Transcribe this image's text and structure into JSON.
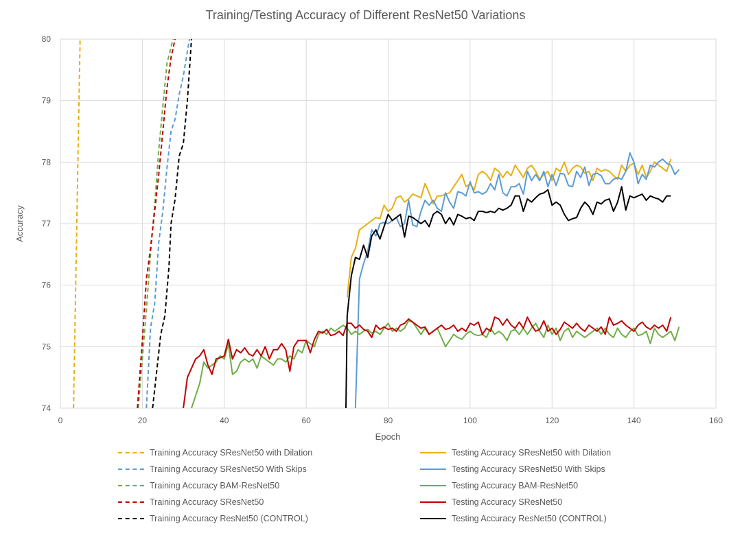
{
  "chart_data": {
    "type": "line",
    "title": "Training/Testing Accuracy of Different ResNet50 Variations",
    "xlabel": "Epoch",
    "ylabel": "Accuracy",
    "xlim": [
      0,
      160
    ],
    "ylim": [
      74,
      80
    ],
    "xticks": [
      0,
      20,
      40,
      60,
      80,
      100,
      120,
      140,
      160
    ],
    "yticks": [
      74,
      75,
      76,
      77,
      78,
      79,
      80
    ],
    "grid": true,
    "legend_position": "bottom",
    "series": [
      {
        "name": "Training Accuracy SResNet50 with Dilation",
        "style": "dashed",
        "color": "#E6B012",
        "x": [
          3.2,
          4.8
        ],
        "y": [
          74.0,
          80.0
        ]
      },
      {
        "name": "Testing Accuracy SResNet50 with Dilation",
        "style": "solid",
        "color": "#E6B012",
        "x": [
          70,
          71,
          72,
          73,
          74,
          75,
          76,
          77,
          78,
          79,
          80,
          81,
          82,
          83,
          84,
          85,
          86,
          87,
          88,
          89,
          90,
          91,
          92,
          93,
          94,
          95,
          96,
          97,
          98,
          99,
          100,
          101,
          102,
          103,
          104,
          105,
          106,
          107,
          108,
          109,
          110,
          111,
          112,
          113,
          114,
          115,
          116,
          117,
          118,
          119,
          120,
          121,
          122,
          123,
          124,
          125,
          126,
          127,
          128,
          129,
          130,
          131,
          132,
          133,
          134,
          135,
          136,
          137,
          138,
          139,
          140,
          141,
          142,
          143,
          144,
          145,
          146,
          147,
          148,
          149
        ],
        "y": [
          75.8,
          76.45,
          76.6,
          76.9,
          76.95,
          77.0,
          77.05,
          77.1,
          77.08,
          77.3,
          77.2,
          77.25,
          77.42,
          77.45,
          77.35,
          77.4,
          77.48,
          77.45,
          77.42,
          77.65,
          77.5,
          77.32,
          77.45,
          77.45,
          77.48,
          77.5,
          77.6,
          77.7,
          77.8,
          77.6,
          77.65,
          77.55,
          77.8,
          77.85,
          77.8,
          77.7,
          77.9,
          77.85,
          77.75,
          77.85,
          77.78,
          77.95,
          77.85,
          77.75,
          77.9,
          77.95,
          77.85,
          77.72,
          77.8,
          77.85,
          77.7,
          77.9,
          77.85,
          78.0,
          77.8,
          77.9,
          77.95,
          77.92,
          77.82,
          77.85,
          77.7,
          77.9,
          77.85,
          77.88,
          77.85,
          77.78,
          77.72,
          77.95,
          77.85,
          77.95,
          77.98,
          77.8,
          77.95,
          77.75,
          77.85,
          78.0,
          77.95,
          77.9,
          77.85,
          78.05
        ]
      },
      {
        "name": "Training Accuracy SResNet50 With Skips",
        "style": "dashed",
        "color": "#5B9BD5",
        "x": [
          21.0,
          22.0,
          23.0,
          24.0,
          25.0,
          26.0,
          27.0,
          28.0,
          29.0,
          30.0,
          31.5
        ],
        "y": [
          74.0,
          75.3,
          75.7,
          76.7,
          77.2,
          77.9,
          78.5,
          78.7,
          79.1,
          79.4,
          80.0
        ]
      },
      {
        "name": "Testing Accuracy SResNet50 With Skips",
        "style": "solid",
        "color": "#5B9BD5",
        "x": [
          72,
          73,
          74,
          75,
          76,
          77,
          78,
          79,
          80,
          81,
          82,
          83,
          84,
          85,
          86,
          87,
          88,
          89,
          90,
          91,
          92,
          93,
          94,
          95,
          96,
          97,
          98,
          99,
          100,
          101,
          102,
          103,
          104,
          105,
          106,
          107,
          108,
          109,
          110,
          111,
          112,
          113,
          114,
          115,
          116,
          117,
          118,
          119,
          120,
          121,
          122,
          123,
          124,
          125,
          126,
          127,
          128,
          129,
          130,
          131,
          132,
          133,
          134,
          135,
          136,
          137,
          138,
          139,
          140,
          141,
          142,
          143,
          144,
          145,
          146,
          147,
          148,
          149,
          150,
          151
        ],
        "y": [
          74.0,
          76.1,
          76.35,
          76.55,
          76.9,
          76.8,
          77.0,
          77.02,
          77.0,
          77.05,
          77.1,
          76.95,
          77.0,
          77.38,
          76.98,
          76.95,
          77.2,
          77.38,
          77.3,
          77.38,
          77.25,
          77.2,
          77.5,
          77.35,
          77.25,
          77.52,
          77.5,
          77.45,
          77.68,
          77.5,
          77.52,
          77.48,
          77.52,
          77.65,
          77.55,
          77.8,
          77.5,
          77.45,
          77.6,
          77.6,
          77.65,
          77.48,
          77.85,
          77.7,
          77.8,
          77.7,
          77.85,
          77.6,
          77.8,
          77.62,
          77.82,
          77.8,
          77.62,
          77.6,
          77.85,
          77.75,
          77.92,
          77.62,
          77.8,
          77.82,
          77.78,
          77.65,
          77.65,
          77.72,
          77.75,
          77.72,
          77.85,
          78.15,
          78.0,
          77.65,
          77.8,
          77.72,
          77.95,
          77.92,
          78.0,
          78.05,
          77.98,
          77.95,
          77.8,
          77.88
        ]
      },
      {
        "name": "Training Accuracy BAM-ResNet50",
        "style": "dashed",
        "color": "#70AD47",
        "x": [
          19.0,
          20.0,
          21.0,
          22.0,
          23.0,
          24.0,
          25.0,
          26.0,
          27.5
        ],
        "y": [
          74.0,
          74.8,
          75.6,
          76.5,
          77.3,
          78.2,
          78.9,
          79.6,
          80.0
        ]
      },
      {
        "name": "Testing Accuracy BAM-ResNet50",
        "style": "solid",
        "color": "#70AD47",
        "x": [
          32,
          33,
          34,
          35,
          36,
          37,
          38,
          39,
          40,
          41,
          42,
          43,
          44,
          45,
          46,
          47,
          48,
          49,
          50,
          51,
          52,
          53,
          54,
          55,
          56,
          57,
          58,
          59,
          60,
          61,
          62,
          63,
          64,
          65,
          66,
          67,
          68,
          69,
          70,
          71,
          72,
          73,
          74,
          75,
          76,
          77,
          78,
          79,
          80,
          81,
          82,
          83,
          84,
          85,
          86,
          87,
          88,
          89,
          90,
          91,
          92,
          93,
          94,
          95,
          96,
          97,
          98,
          99,
          100,
          101,
          102,
          103,
          104,
          105,
          106,
          107,
          108,
          109,
          110,
          111,
          112,
          113,
          114,
          115,
          116,
          117,
          118,
          119,
          120,
          121,
          122,
          123,
          124,
          125,
          126,
          127,
          128,
          129,
          130,
          131,
          132,
          133,
          134,
          135,
          136,
          137,
          138,
          139,
          140,
          141,
          142,
          143,
          144,
          145,
          146,
          147,
          148,
          149,
          150,
          151
        ],
        "y": [
          74.0,
          74.2,
          74.4,
          74.75,
          74.65,
          74.7,
          74.75,
          74.85,
          74.8,
          75.05,
          74.55,
          74.6,
          74.75,
          74.8,
          74.75,
          74.8,
          74.65,
          74.85,
          74.8,
          74.75,
          74.7,
          74.8,
          74.8,
          74.75,
          74.85,
          74.8,
          74.95,
          74.9,
          75.1,
          75.05,
          75.0,
          75.2,
          75.25,
          75.2,
          75.3,
          75.25,
          75.3,
          75.35,
          75.3,
          75.2,
          75.25,
          75.2,
          75.25,
          75.28,
          75.22,
          75.25,
          75.2,
          75.3,
          75.38,
          75.25,
          75.3,
          75.25,
          75.3,
          75.42,
          75.4,
          75.3,
          75.2,
          75.3,
          75.2,
          75.25,
          75.3,
          75.15,
          75.0,
          75.1,
          75.2,
          75.15,
          75.12,
          75.2,
          75.25,
          75.2,
          75.18,
          75.2,
          75.15,
          75.3,
          75.2,
          75.25,
          75.2,
          75.1,
          75.25,
          75.28,
          75.2,
          75.3,
          75.2,
          75.3,
          75.38,
          75.25,
          75.15,
          75.35,
          75.2,
          75.3,
          75.1,
          75.25,
          75.3,
          75.15,
          75.25,
          75.2,
          75.15,
          75.2,
          75.25,
          75.3,
          75.2,
          75.3,
          75.2,
          75.15,
          75.3,
          75.2,
          75.15,
          75.25,
          75.3,
          75.18,
          75.2,
          75.25,
          75.05,
          75.3,
          75.2,
          75.15,
          75.2,
          75.25,
          75.1,
          75.32
        ]
      },
      {
        "name": "Training Accuracy SResNet50",
        "style": "dashed",
        "color": "#C00000",
        "x": [
          18.8,
          20.0,
          21.0,
          22.0,
          23.0,
          24.0,
          25.0,
          26.0,
          27.0,
          28.0
        ],
        "y": [
          74.0,
          75.1,
          76.1,
          76.6,
          77.2,
          77.8,
          78.5,
          79.2,
          79.7,
          80.0
        ]
      },
      {
        "name": "Testing Accuracy SResNet50",
        "style": "solid",
        "color": "#C00000",
        "x": [
          30,
          31,
          32,
          33,
          34,
          35,
          36,
          37,
          38,
          39,
          40,
          41,
          42,
          43,
          44,
          45,
          46,
          47,
          48,
          49,
          50,
          51,
          52,
          53,
          54,
          55,
          56,
          57,
          58,
          59,
          60,
          61,
          62,
          63,
          64,
          65,
          66,
          67,
          68,
          69,
          70,
          71,
          72,
          73,
          74,
          75,
          76,
          77,
          78,
          79,
          80,
          81,
          82,
          83,
          84,
          85,
          86,
          87,
          88,
          89,
          90,
          91,
          92,
          93,
          94,
          95,
          96,
          97,
          98,
          99,
          100,
          101,
          102,
          103,
          104,
          105,
          106,
          107,
          108,
          109,
          110,
          111,
          112,
          113,
          114,
          115,
          116,
          117,
          118,
          119,
          120,
          121,
          122,
          123,
          124,
          125,
          126,
          127,
          128,
          129,
          130,
          131,
          132,
          133,
          134,
          135,
          136,
          137,
          138,
          139,
          140,
          141,
          142,
          143,
          144,
          145,
          146,
          147,
          148,
          149
        ],
        "y": [
          74.0,
          74.5,
          74.65,
          74.8,
          74.85,
          74.95,
          74.7,
          74.55,
          74.8,
          74.82,
          74.85,
          75.12,
          74.8,
          74.95,
          74.9,
          74.98,
          74.88,
          74.85,
          74.95,
          74.85,
          75.0,
          74.8,
          74.95,
          74.95,
          75.05,
          74.95,
          74.6,
          75.0,
          75.1,
          75.1,
          75.1,
          74.9,
          75.12,
          75.25,
          75.22,
          75.28,
          75.18,
          75.2,
          75.25,
          75.18,
          75.38,
          75.38,
          75.3,
          75.35,
          75.28,
          75.25,
          75.15,
          75.35,
          75.28,
          75.32,
          75.28,
          75.3,
          75.25,
          75.35,
          75.38,
          75.45,
          75.4,
          75.35,
          75.3,
          75.32,
          75.2,
          75.25,
          75.3,
          75.35,
          75.28,
          75.3,
          75.35,
          75.25,
          75.3,
          75.25,
          75.38,
          75.35,
          75.4,
          75.2,
          75.3,
          75.25,
          75.48,
          75.45,
          75.35,
          75.45,
          75.35,
          75.3,
          75.4,
          75.3,
          75.48,
          75.35,
          75.25,
          75.28,
          75.42,
          75.25,
          75.3,
          75.2,
          75.28,
          75.4,
          75.35,
          75.3,
          75.38,
          75.3,
          75.25,
          75.35,
          75.3,
          75.25,
          75.32,
          75.2,
          75.48,
          75.35,
          75.38,
          75.42,
          75.35,
          75.3,
          75.25,
          75.35,
          75.4,
          75.32,
          75.28,
          75.35,
          75.3,
          75.35,
          75.25,
          75.48
        ]
      },
      {
        "name": "Training Accuracy ResNet50 (CONTROL)",
        "style": "dashed",
        "color": "#000000",
        "x": [
          22.5,
          23.5,
          24.5,
          25.5,
          26.5,
          27.0,
          28.0,
          29.0,
          30.0,
          31.0,
          32.0
        ],
        "y": [
          74.0,
          74.6,
          75.2,
          75.5,
          76.3,
          77.0,
          77.4,
          78.1,
          78.3,
          79.0,
          80.0
        ]
      },
      {
        "name": "Testing Accuracy  ResNet50 (CONTROL)",
        "style": "solid",
        "color": "#000000",
        "x": [
          69.7,
          70,
          71,
          72,
          73,
          74,
          75,
          76,
          77,
          78,
          79,
          80,
          81,
          82,
          83,
          84,
          85,
          86,
          87,
          88,
          89,
          90,
          91,
          92,
          93,
          94,
          95,
          96,
          97,
          98,
          99,
          100,
          101,
          102,
          103,
          104,
          105,
          106,
          107,
          108,
          109,
          110,
          111,
          112,
          113,
          114,
          115,
          116,
          117,
          118,
          119,
          120,
          121,
          122,
          123,
          124,
          125,
          126,
          127,
          128,
          129,
          130,
          131,
          132,
          133,
          134,
          135,
          136,
          137,
          138,
          139,
          140,
          141,
          142,
          143,
          144,
          145,
          146,
          147,
          148,
          149
        ],
        "y": [
          74.0,
          75.5,
          76.15,
          76.45,
          76.42,
          76.65,
          76.45,
          76.8,
          76.9,
          76.75,
          76.95,
          77.15,
          77.05,
          77.1,
          77.15,
          76.78,
          77.12,
          77.1,
          77.05,
          77.0,
          77.05,
          76.95,
          77.15,
          77.2,
          77.15,
          77.0,
          77.1,
          76.98,
          77.15,
          77.12,
          77.08,
          77.1,
          77.05,
          77.2,
          77.2,
          77.18,
          77.2,
          77.18,
          77.25,
          77.22,
          77.25,
          77.3,
          77.45,
          77.45,
          77.2,
          77.4,
          77.35,
          77.42,
          77.48,
          77.5,
          77.55,
          77.3,
          77.35,
          77.3,
          77.15,
          77.05,
          77.08,
          77.1,
          77.25,
          77.35,
          77.28,
          77.15,
          77.35,
          77.32,
          77.38,
          77.4,
          77.2,
          77.35,
          77.6,
          77.22,
          77.45,
          77.42,
          77.45,
          77.48,
          77.38,
          77.45,
          77.42,
          77.4,
          77.35,
          77.45,
          77.45
        ]
      }
    ]
  }
}
